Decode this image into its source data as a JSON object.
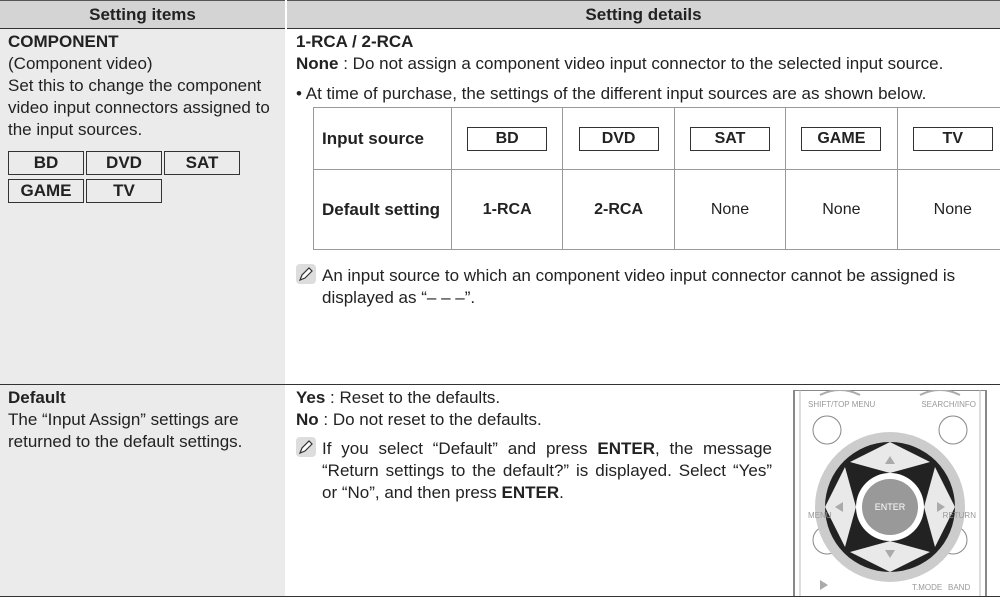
{
  "header": {
    "col1": "Setting items",
    "col2": "Setting details"
  },
  "rows": [
    {
      "item": {
        "title": "COMPONENT",
        "subtitle": "(Component video)",
        "description": "Set this to change the component video input connectors assigned to the input sources.",
        "sources": [
          "BD",
          "DVD",
          "SAT",
          "GAME",
          "TV"
        ]
      },
      "details": {
        "heading": "1-RCA / 2-RCA",
        "option": {
          "term": "None",
          "text": ": Do not assign a component video input connector to the selected input source."
        },
        "bullet": "At time of purchase, the settings of the different input sources are as shown below.",
        "table": {
          "header": [
            "Input source",
            "BD",
            "DVD",
            "SAT",
            "GAME",
            "TV"
          ],
          "row": [
            "Default setting",
            "1-RCA",
            "2-RCA",
            "None",
            "None",
            "None"
          ]
        },
        "note": "An input source to which an component video input connector cannot be assigned is displayed as “– – –”."
      }
    },
    {
      "item": {
        "title": "Default",
        "description": "The “Input Assign” settings are returned to the default settings."
      },
      "details": {
        "options": [
          {
            "term": "Yes",
            "text": ": Reset to the defaults."
          },
          {
            "term": "No",
            "text": ": Do not reset to the defaults."
          }
        ],
        "note": [
          "If you select “Default” and press ",
          "ENTER",
          ", the message “Return settings to the default?” is displayed. Select “Yes” or “No”, and then press ",
          "ENTER",
          "."
        ]
      }
    }
  ],
  "remote": {
    "labels": [
      "SHIFT/TOP MENU",
      "SEARCH/INFO",
      "ENTER",
      "MENU",
      "RETURN",
      "T.MODE",
      "BAND"
    ]
  }
}
